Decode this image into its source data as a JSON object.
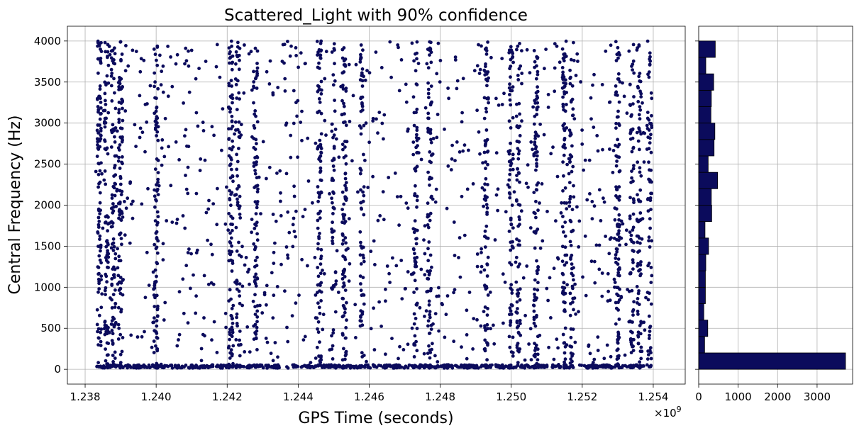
{
  "chart_data": [
    {
      "type": "scatter",
      "title": "Scattered_Light with 90% confidence",
      "xlabel": "GPS Time (seconds)",
      "ylabel": "Central Frequency (Hz)",
      "x_offset_label": "×10",
      "x_offset_exponent": "9",
      "xlim": [
        1.2375,
        1.2549
      ],
      "ylim": [
        -180,
        4180
      ],
      "x_ticks": [
        1.238,
        1.24,
        1.242,
        1.244,
        1.246,
        1.248,
        1.25,
        1.252,
        1.254
      ],
      "x_tick_labels": [
        "1.238",
        "1.240",
        "1.242",
        "1.244",
        "1.246",
        "1.248",
        "1.250",
        "1.252",
        "1.254"
      ],
      "y_ticks": [
        0,
        500,
        1000,
        1500,
        2000,
        2500,
        3000,
        3500,
        4000
      ],
      "y_tick_labels": [
        "0",
        "500",
        "1000",
        "1500",
        "2000",
        "2500",
        "3000",
        "3500",
        "4000"
      ],
      "grid": true,
      "marker_color": "#0b0b5c",
      "x_range_data": [
        1.2383,
        1.254
      ],
      "y_range_data": [
        15,
        4000
      ],
      "dense_columns_x": [
        1.2384,
        1.2386,
        1.2388,
        1.239,
        1.24,
        1.2421,
        1.2423,
        1.2428,
        1.2446,
        1.245,
        1.2453,
        1.2458,
        1.2473,
        1.2477,
        1.2493,
        1.25,
        1.2502,
        1.2507,
        1.2515,
        1.2517,
        1.253,
        1.2534,
        1.2536,
        1.2539
      ]
    },
    {
      "type": "bar",
      "orientation": "horizontal",
      "xlim": [
        0,
        3900
      ],
      "x_ticks": [
        0,
        1000,
        2000,
        3000
      ],
      "x_tick_labels": [
        "0",
        "1000",
        "2000",
        "3000"
      ],
      "bin_width": 200,
      "bin_starts": [
        0,
        200,
        400,
        600,
        800,
        1000,
        1200,
        1400,
        1600,
        1800,
        2000,
        2200,
        2400,
        2600,
        2800,
        3000,
        3200,
        3400,
        3600,
        3800
      ],
      "values": [
        3720,
        150,
        230,
        130,
        170,
        170,
        180,
        250,
        160,
        330,
        320,
        480,
        240,
        390,
        410,
        310,
        320,
        380,
        180,
        420
      ],
      "bar_color": "#0b0b5c",
      "edge_color": "#000000"
    }
  ]
}
